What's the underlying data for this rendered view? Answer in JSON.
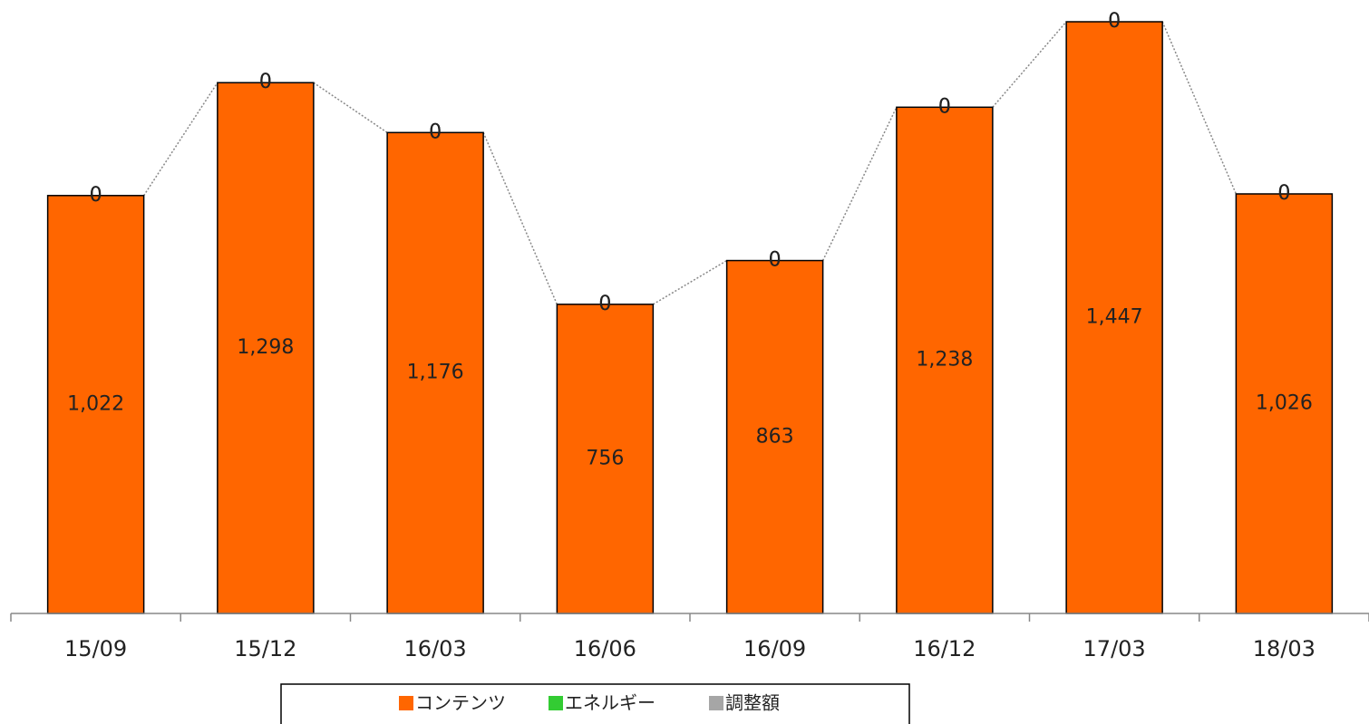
{
  "chart_data": {
    "type": "stacked-bar",
    "categories": [
      "15/09",
      "15/12",
      "16/03",
      "16/06",
      "16/09",
      "16/12",
      "17/03",
      "18/03"
    ],
    "series": [
      {
        "name": "コンテンツ",
        "color": "#ff6600",
        "values": [
          1022,
          1298,
          1176,
          756,
          863,
          1238,
          1447,
          1026
        ]
      },
      {
        "name": "エネルギー",
        "color": "#33cc33",
        "values": [
          0,
          0,
          0,
          0,
          0,
          0,
          0,
          0
        ]
      },
      {
        "name": "調整額",
        "color": "#a6a6a6",
        "values": [
          0,
          0,
          0,
          0,
          0,
          0,
          0,
          0
        ]
      }
    ],
    "value_labels": [
      [
        "1,022",
        "1,298",
        "1,176",
        "756",
        "863",
        "1,238",
        "1,447",
        "1,026"
      ],
      null,
      null
    ],
    "legend": "bottom"
  }
}
